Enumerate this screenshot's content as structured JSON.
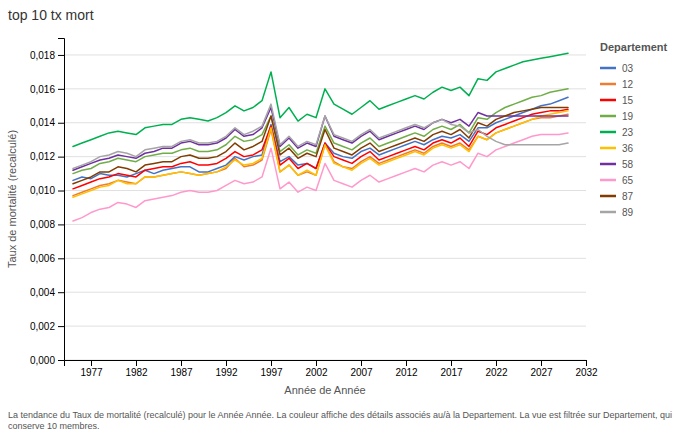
{
  "chart_data": {
    "type": "line",
    "title": "top 10 tx mort",
    "x_label": "Année de Année",
    "y_label": "Taux de mortalité (recalculé)",
    "caption": "La tendance du Taux de mortalité (recalculé) pour le Année Année. La couleur affiche des détails associés au/à la Departement. La vue est filtrée sur Departement, qui conserve 10 membres.",
    "legend_title": "Departement",
    "legend": "right",
    "grid": true,
    "x": [
      1975,
      1976,
      1977,
      1978,
      1979,
      1980,
      1981,
      1982,
      1983,
      1984,
      1985,
      1986,
      1987,
      1988,
      1989,
      1990,
      1991,
      1992,
      1993,
      1994,
      1995,
      1996,
      1997,
      1998,
      1999,
      2000,
      2001,
      2002,
      2003,
      2004,
      2005,
      2006,
      2007,
      2008,
      2009,
      2010,
      2011,
      2012,
      2013,
      2014,
      2015,
      2016,
      2017,
      2018,
      2019,
      2020,
      2021,
      2022,
      2023,
      2024,
      2025,
      2026,
      2027,
      2028,
      2029,
      2030
    ],
    "xlim": [
      1974,
      2032
    ],
    "xticks": [
      1977,
      1982,
      1987,
      1992,
      1997,
      2002,
      2007,
      2012,
      2017,
      2022,
      2027,
      2032
    ],
    "ylim": [
      0,
      0.019
    ],
    "yticks": [
      {
        "value": 0.0,
        "label": "0,000"
      },
      {
        "value": 0.002,
        "label": "0,002"
      },
      {
        "value": 0.004,
        "label": "0,004"
      },
      {
        "value": 0.006,
        "label": "0,006"
      },
      {
        "value": 0.008,
        "label": "0,008"
      },
      {
        "value": 0.01,
        "label": "0,010"
      },
      {
        "value": 0.012,
        "label": "0,012"
      },
      {
        "value": 0.014,
        "label": "0,014"
      },
      {
        "value": 0.016,
        "label": "0,016"
      },
      {
        "value": 0.018,
        "label": "0,018"
      }
    ],
    "series": [
      {
        "name": "03",
        "color": "#4472C4",
        "values": [
          0.0106,
          0.0108,
          0.0107,
          0.011,
          0.0109,
          0.0109,
          0.0108,
          0.011,
          0.0112,
          0.011,
          0.0112,
          0.0113,
          0.0114,
          0.0114,
          0.0111,
          0.0111,
          0.0113,
          0.0115,
          0.012,
          0.0118,
          0.012,
          0.0121,
          0.0139,
          0.0117,
          0.012,
          0.0115,
          0.0116,
          0.0113,
          0.0128,
          0.0122,
          0.012,
          0.0119,
          0.0123,
          0.0125,
          0.0121,
          0.0123,
          0.0125,
          0.0127,
          0.0129,
          0.0127,
          0.013,
          0.0132,
          0.0131,
          0.0133,
          0.0129,
          0.0137,
          0.0137,
          0.014,
          0.0142,
          0.0144,
          0.0146,
          0.0148,
          0.015,
          0.0151,
          0.0153,
          0.0155
        ]
      },
      {
        "name": "12",
        "color": "#ED7D31",
        "values": [
          0.0097,
          0.0099,
          0.0101,
          0.0103,
          0.0104,
          0.0106,
          0.0105,
          0.0104,
          0.0108,
          0.0108,
          0.0109,
          0.011,
          0.0111,
          0.011,
          0.0109,
          0.011,
          0.0111,
          0.0113,
          0.0119,
          0.0114,
          0.0115,
          0.0118,
          0.0136,
          0.0111,
          0.0115,
          0.0109,
          0.0111,
          0.0109,
          0.0127,
          0.0117,
          0.0114,
          0.0113,
          0.0117,
          0.012,
          0.0116,
          0.0118,
          0.012,
          0.0122,
          0.0124,
          0.0122,
          0.0126,
          0.0128,
          0.0126,
          0.0128,
          0.0124,
          0.0132,
          0.013,
          0.0134,
          0.0136,
          0.0138,
          0.014,
          0.0142,
          0.0143,
          0.0143,
          0.0144,
          0.0145
        ]
      },
      {
        "name": "15",
        "color": "#FF0000",
        "values": [
          0.0101,
          0.0103,
          0.0105,
          0.0107,
          0.0108,
          0.011,
          0.0109,
          0.0108,
          0.0112,
          0.0113,
          0.0114,
          0.0114,
          0.0116,
          0.0117,
          0.0115,
          0.0115,
          0.0116,
          0.0119,
          0.0123,
          0.012,
          0.0121,
          0.0124,
          0.0138,
          0.0115,
          0.0119,
          0.0113,
          0.0116,
          0.0113,
          0.0128,
          0.012,
          0.0118,
          0.0116,
          0.012,
          0.0123,
          0.0118,
          0.012,
          0.0122,
          0.0124,
          0.0126,
          0.0124,
          0.0128,
          0.013,
          0.0128,
          0.0131,
          0.0126,
          0.0135,
          0.0133,
          0.0137,
          0.0139,
          0.0141,
          0.0143,
          0.0145,
          0.0146,
          0.0147,
          0.0147,
          0.0148
        ]
      },
      {
        "name": "19",
        "color": "#70AD47",
        "values": [
          0.011,
          0.0112,
          0.0113,
          0.0116,
          0.0117,
          0.0119,
          0.0118,
          0.0117,
          0.012,
          0.0121,
          0.0122,
          0.0122,
          0.0124,
          0.0125,
          0.0123,
          0.0123,
          0.0124,
          0.0127,
          0.0132,
          0.0129,
          0.013,
          0.0133,
          0.0144,
          0.0123,
          0.0127,
          0.0121,
          0.0124,
          0.0122,
          0.0138,
          0.0128,
          0.0126,
          0.0124,
          0.0128,
          0.0131,
          0.0126,
          0.0128,
          0.013,
          0.0132,
          0.0134,
          0.0132,
          0.0136,
          0.0138,
          0.0136,
          0.0139,
          0.0134,
          0.0143,
          0.0142,
          0.0146,
          0.0149,
          0.0151,
          0.0153,
          0.0155,
          0.0156,
          0.0158,
          0.0159,
          0.016
        ]
      },
      {
        "name": "23",
        "color": "#00B050",
        "values": [
          0.0126,
          0.0128,
          0.013,
          0.0132,
          0.0134,
          0.0135,
          0.0134,
          0.0133,
          0.0137,
          0.0138,
          0.0139,
          0.0139,
          0.0142,
          0.0143,
          0.0142,
          0.0141,
          0.0143,
          0.0146,
          0.015,
          0.0147,
          0.0149,
          0.0153,
          0.017,
          0.0143,
          0.0149,
          0.0141,
          0.0145,
          0.0143,
          0.016,
          0.0151,
          0.0148,
          0.0145,
          0.0149,
          0.0153,
          0.0148,
          0.015,
          0.0152,
          0.0154,
          0.0156,
          0.0154,
          0.0158,
          0.0161,
          0.0159,
          0.0161,
          0.0156,
          0.0166,
          0.0165,
          0.017,
          0.0172,
          0.0174,
          0.0176,
          0.0177,
          0.0178,
          0.0179,
          0.018,
          0.0181
        ]
      },
      {
        "name": "36",
        "color": "#FFC000",
        "values": [
          0.0096,
          0.0098,
          0.01,
          0.0102,
          0.0103,
          0.0106,
          0.0104,
          0.0104,
          0.0108,
          0.0108,
          0.0109,
          0.011,
          0.0111,
          0.011,
          0.0109,
          0.011,
          0.0111,
          0.0114,
          0.0118,
          0.0115,
          0.0116,
          0.0119,
          0.0137,
          0.0111,
          0.0115,
          0.0109,
          0.0112,
          0.0109,
          0.0127,
          0.0116,
          0.0114,
          0.0112,
          0.0116,
          0.0119,
          0.0115,
          0.0117,
          0.0119,
          0.0121,
          0.0123,
          0.0121,
          0.0125,
          0.0127,
          0.0125,
          0.0127,
          0.0123,
          0.0132,
          0.013,
          0.0134,
          0.0136,
          0.0138,
          0.014,
          0.0142,
          0.0144,
          0.0145,
          0.0146,
          0.0147
        ]
      },
      {
        "name": "58",
        "color": "#7030A0",
        "values": [
          0.0112,
          0.0114,
          0.0116,
          0.0118,
          0.0119,
          0.0121,
          0.012,
          0.0119,
          0.0122,
          0.0123,
          0.0125,
          0.0125,
          0.0128,
          0.0129,
          0.0127,
          0.0127,
          0.0128,
          0.0131,
          0.0136,
          0.0132,
          0.0133,
          0.0137,
          0.0149,
          0.0126,
          0.0131,
          0.0125,
          0.0128,
          0.0126,
          0.0144,
          0.0132,
          0.013,
          0.0128,
          0.0132,
          0.0135,
          0.013,
          0.0132,
          0.0134,
          0.0136,
          0.0138,
          0.0136,
          0.014,
          0.0142,
          0.014,
          0.0142,
          0.0138,
          0.0146,
          0.0144,
          0.0144,
          0.0144,
          0.0144,
          0.0144,
          0.0144,
          0.0144,
          0.0144,
          0.0144,
          0.0144
        ]
      },
      {
        "name": "65",
        "color": "#FF99CC",
        "values": [
          0.0082,
          0.0084,
          0.0087,
          0.0089,
          0.009,
          0.0093,
          0.0092,
          0.009,
          0.0094,
          0.0095,
          0.0096,
          0.0097,
          0.0099,
          0.01,
          0.0099,
          0.0099,
          0.01,
          0.0103,
          0.0106,
          0.0104,
          0.0105,
          0.0108,
          0.0125,
          0.0101,
          0.0105,
          0.0099,
          0.0102,
          0.01,
          0.0116,
          0.0106,
          0.0104,
          0.0102,
          0.0106,
          0.0109,
          0.0105,
          0.0107,
          0.0109,
          0.0111,
          0.0113,
          0.0111,
          0.0115,
          0.0117,
          0.0115,
          0.0117,
          0.0113,
          0.0122,
          0.012,
          0.0124,
          0.0126,
          0.0128,
          0.013,
          0.0132,
          0.0133,
          0.0133,
          0.0133,
          0.0134
        ]
      },
      {
        "name": "87",
        "color": "#833C00",
        "values": [
          0.0104,
          0.0106,
          0.0108,
          0.0111,
          0.0111,
          0.0114,
          0.0113,
          0.0111,
          0.0115,
          0.0116,
          0.0117,
          0.0117,
          0.012,
          0.0121,
          0.0119,
          0.0119,
          0.012,
          0.0123,
          0.0128,
          0.0124,
          0.0126,
          0.0129,
          0.0144,
          0.0121,
          0.0125,
          0.0119,
          0.0122,
          0.012,
          0.0136,
          0.0125,
          0.0123,
          0.0121,
          0.0125,
          0.0128,
          0.0123,
          0.0125,
          0.0127,
          0.0129,
          0.0131,
          0.0129,
          0.0133,
          0.0135,
          0.0133,
          0.0136,
          0.0131,
          0.014,
          0.0138,
          0.0142,
          0.0144,
          0.0146,
          0.0147,
          0.0148,
          0.0149,
          0.0149,
          0.0149,
          0.0149
        ]
      },
      {
        "name": "89",
        "color": "#A5A5A5",
        "values": [
          0.0113,
          0.0115,
          0.0117,
          0.012,
          0.0121,
          0.0123,
          0.0122,
          0.012,
          0.0124,
          0.0125,
          0.0126,
          0.0126,
          0.0129,
          0.013,
          0.0128,
          0.0128,
          0.0129,
          0.0132,
          0.0137,
          0.0133,
          0.0135,
          0.0138,
          0.0151,
          0.0127,
          0.0132,
          0.0126,
          0.0129,
          0.0127,
          0.0144,
          0.0133,
          0.0131,
          0.0129,
          0.0133,
          0.0136,
          0.0131,
          0.0133,
          0.0135,
          0.0137,
          0.0139,
          0.0137,
          0.014,
          0.0142,
          0.0139,
          0.0138,
          0.0134,
          0.0136,
          0.0132,
          0.0129,
          0.0127,
          0.0127,
          0.0127,
          0.0127,
          0.0127,
          0.0127,
          0.0127,
          0.0128
        ]
      }
    ]
  }
}
